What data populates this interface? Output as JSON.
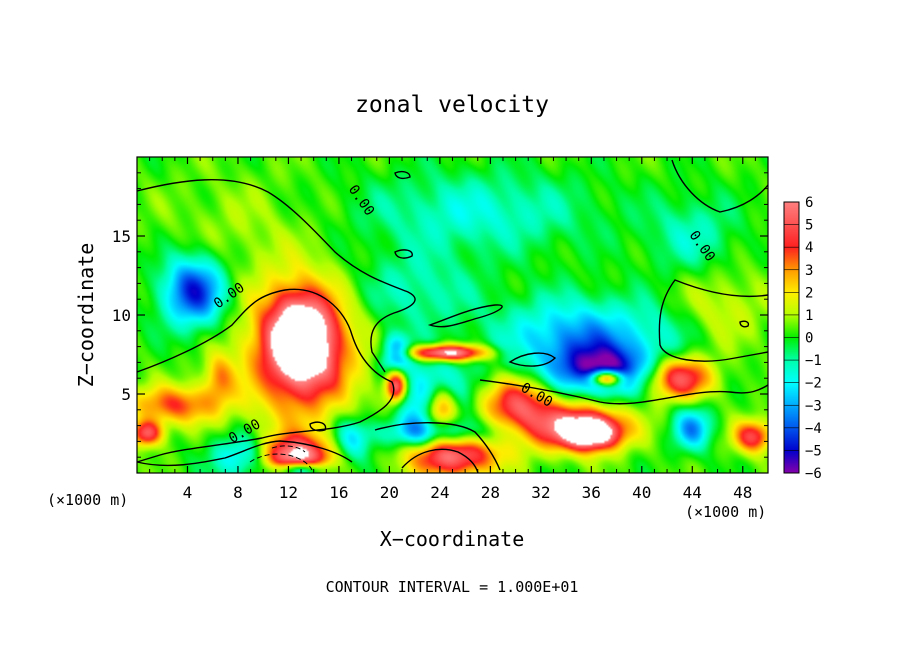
{
  "chart_data": {
    "type": "heatmap",
    "title": "zonal velocity",
    "xlabel": "X−coordinate",
    "ylabel": "Z−coordinate",
    "x_unit_left": "(×1000 m)",
    "x_unit_right": "(×1000 m)",
    "z_unit": "(×1000 m)",
    "footer": "CONTOUR INTERVAL = 1.000E+01",
    "xlim": [
      0,
      50
    ],
    "ylim": [
      0,
      20
    ],
    "xticks": [
      4,
      8,
      12,
      16,
      20,
      24,
      28,
      32,
      36,
      40,
      44,
      48
    ],
    "yticks": [
      5,
      10,
      15
    ],
    "colorbar": {
      "levels": [
        6,
        5,
        4,
        3,
        2,
        1,
        0,
        -1,
        -2,
        -3,
        -4,
        -5,
        -6
      ],
      "colors": [
        "#ff8080",
        "#ff5050",
        "#ff2020",
        "#ff9a00",
        "#ffee00",
        "#b4ff00",
        "#00ee00",
        "#00ffaa",
        "#00ffff",
        "#00aaff",
        "#0055ee",
        "#0000cc",
        "#8800aa"
      ]
    },
    "contour_labels": [
      {
        "text": "0.00",
        "x": 17.5,
        "z": 17.1
      },
      {
        "text": "0.00",
        "x": 7.5,
        "z": 11.0
      },
      {
        "text": "0.00",
        "x": 8.7,
        "z": 2.4
      },
      {
        "text": "0.00",
        "x": 31.5,
        "z": 4.7
      },
      {
        "text": "0.00",
        "x": 44.5,
        "z": 14.2
      }
    ],
    "features": [
      {
        "x": 4.5,
        "z": 11.5,
        "value": -5,
        "rx": 2.5,
        "rz": 2.2
      },
      {
        "x": 13,
        "z": 8.5,
        "value": 7,
        "rx": 2.5,
        "rz": 2.7
      },
      {
        "x": 13,
        "z": 7.5,
        "value": 4,
        "rx": 4.5,
        "rz": 4.5
      },
      {
        "x": 3,
        "z": 4.3,
        "value": 3.5,
        "rx": 3.5,
        "rz": 1.2
      },
      {
        "x": 6.5,
        "z": 6.0,
        "value": 2.5,
        "rx": 1.2,
        "rz": 1.5
      },
      {
        "x": 0.8,
        "z": 2.5,
        "value": 5,
        "rx": 1.2,
        "rz": 0.8
      },
      {
        "x": 8.5,
        "z": 1.0,
        "value": -3,
        "rx": 2.5,
        "rz": 1.4
      },
      {
        "x": 12.5,
        "z": 1.0,
        "value": 6.5,
        "rx": 2.8,
        "rz": 1.3
      },
      {
        "x": 13,
        "z": 0.2,
        "value": -5,
        "rx": 2,
        "rz": 0.5
      },
      {
        "x": 20.5,
        "z": 7.5,
        "value": -4,
        "rx": 1.2,
        "rz": 1.2
      },
      {
        "x": 24.5,
        "z": 7.6,
        "value": 7,
        "rx": 3.0,
        "rz": 0.5
      },
      {
        "x": 20.5,
        "z": 5.5,
        "value": 6,
        "rx": 0.8,
        "rz": 1.0
      },
      {
        "x": 24,
        "z": 4.0,
        "value": 7,
        "rx": 1.4,
        "rz": 1.6
      },
      {
        "x": 23.5,
        "z": 4.5,
        "value": -5,
        "rx": 2.3,
        "rz": 2.3
      },
      {
        "x": 25,
        "z": 1.2,
        "value": 6,
        "rx": 3.5,
        "rz": 1.4
      },
      {
        "x": 24,
        "z": 2.5,
        "value": -3.5,
        "rx": 5,
        "rz": 1.0
      },
      {
        "x": 30,
        "z": 4.5,
        "value": 4,
        "rx": 2.5,
        "rz": 1.5
      },
      {
        "x": 34,
        "z": 3.0,
        "value": 5,
        "rx": 4.5,
        "rz": 1.5
      },
      {
        "x": 36,
        "z": 2.5,
        "value": 6.5,
        "rx": 2.2,
        "rz": 1.0
      },
      {
        "x": 37,
        "z": 6.5,
        "value": -5,
        "rx": 3.5,
        "rz": 1.5
      },
      {
        "x": 37.2,
        "z": 6.0,
        "value": 7,
        "rx": 1.3,
        "rz": 0.5
      },
      {
        "x": 35,
        "z": 8.5,
        "value": -3.5,
        "rx": 6,
        "rz": 2.5
      },
      {
        "x": 43,
        "z": 6.0,
        "value": 5,
        "rx": 2.5,
        "rz": 1.3
      },
      {
        "x": 48.8,
        "z": 2.3,
        "value": 4.5,
        "rx": 1.5,
        "rz": 1.0
      },
      {
        "x": 44,
        "z": 2.8,
        "value": -3.5,
        "rx": 1.5,
        "rz": 1.3
      },
      {
        "x": 27,
        "z": 16.5,
        "value": -1.8,
        "rx": 9,
        "rz": 2.5
      },
      {
        "x": 22,
        "z": 11.5,
        "value": -1.5,
        "rx": 5,
        "rz": 2.5
      },
      {
        "x": 44,
        "z": 15.0,
        "value": -1.5,
        "rx": 3.5,
        "rz": 2.5
      },
      {
        "x": 46,
        "z": 10.5,
        "value": 1.2,
        "rx": 4,
        "rz": 2.5
      },
      {
        "x": 8,
        "z": 15.5,
        "value": 0.6,
        "rx": 6,
        "rz": 3.5
      },
      {
        "x": 17,
        "z": 2.0,
        "value": -2.5,
        "rx": 1.5,
        "rz": 1.5
      },
      {
        "x": 42,
        "z": 9.0,
        "value": -0.8,
        "rx": 3,
        "rz": 2.0
      }
    ]
  }
}
